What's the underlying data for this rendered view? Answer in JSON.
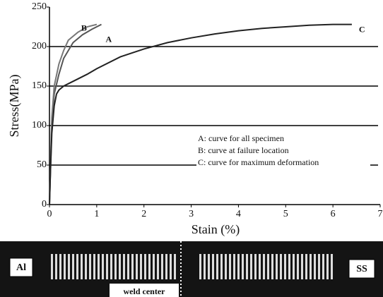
{
  "chart_data": {
    "type": "line",
    "ylabel": "Stress(MPa)",
    "xlabel": "Stain (%)",
    "xlim": [
      0,
      7
    ],
    "xticks": [
      0,
      1,
      2,
      3,
      4,
      5,
      6,
      7
    ],
    "ylim": [
      0,
      250
    ],
    "yticks": [
      0,
      50,
      100,
      150,
      200,
      250
    ],
    "grid": true,
    "series": [
      {
        "name": "A",
        "color": "#555555",
        "x": [
          0,
          0.05,
          0.1,
          0.2,
          0.3,
          0.5,
          0.7,
          0.9,
          1.1
        ],
        "values": [
          0,
          100,
          140,
          165,
          185,
          205,
          215,
          222,
          228
        ]
      },
      {
        "name": "B",
        "color": "#777777",
        "x": [
          0,
          0.05,
          0.1,
          0.2,
          0.3,
          0.4,
          0.6,
          0.8,
          1.0
        ],
        "values": [
          0,
          110,
          150,
          178,
          195,
          208,
          218,
          225,
          228
        ]
      },
      {
        "name": "C",
        "color": "#222222",
        "x": [
          0,
          0.02,
          0.05,
          0.1,
          0.15,
          0.2,
          0.3,
          0.5,
          0.8,
          1,
          1.5,
          2,
          2.5,
          3,
          3.5,
          4,
          4.5,
          5,
          5.5,
          6,
          6.4
        ],
        "values": [
          0,
          40,
          90,
          125,
          140,
          145,
          150,
          156,
          165,
          172,
          187,
          197,
          205,
          211,
          216,
          220,
          223,
          225,
          227,
          228,
          228
        ]
      }
    ],
    "annotations": [
      "A: curve for all specimen",
      "B: curve at failure location",
      "C: curve for maximum deformation"
    ]
  },
  "strip_labels": {
    "left": "Al",
    "right": "SS",
    "center": "weld center"
  }
}
